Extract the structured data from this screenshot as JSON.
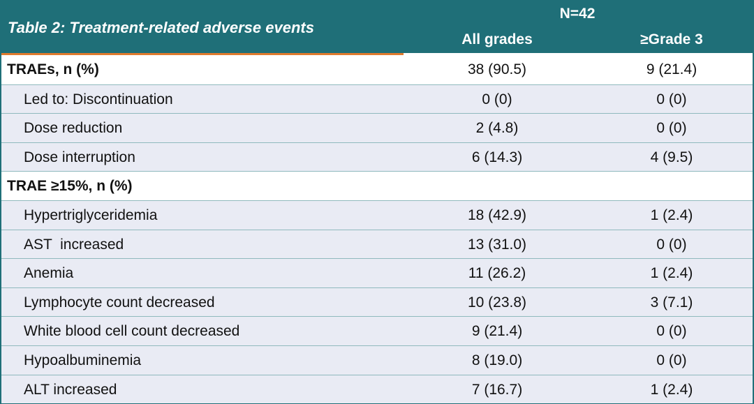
{
  "table": {
    "title": "Table 2: Treatment-related adverse events",
    "n_label": "N=42",
    "columns": [
      "All grades",
      "≥Grade 3"
    ],
    "rows": [
      {
        "label": "TRAEs, n (%)",
        "all": "38 (90.5)",
        "g3": "9 (21.4)",
        "section": true
      },
      {
        "label": "Led to: Discontinuation",
        "all": "0 (0)",
        "g3": "0 (0)"
      },
      {
        "label": "Dose reduction",
        "all": "2 (4.8)",
        "g3": "0 (0)"
      },
      {
        "label": "Dose interruption",
        "all": "6 (14.3)",
        "g3": "4 (9.5)"
      },
      {
        "label": "TRAE ≥15%, n (%)",
        "all": "",
        "g3": "",
        "section": true
      },
      {
        "label": "Hypertriglyceridemia",
        "all": "18 (42.9)",
        "g3": "1 (2.4)"
      },
      {
        "label": "AST  increased",
        "all": "13 (31.0)",
        "g3": "0 (0)"
      },
      {
        "label": "Anemia",
        "all": "11 (26.2)",
        "g3": "1 (2.4)"
      },
      {
        "label": "Lymphocyte count decreased",
        "all": "10 (23.8)",
        "g3": "3 (7.1)"
      },
      {
        "label": "White blood cell count decreased",
        "all": "9 (21.4)",
        "g3": "0 (0)"
      },
      {
        "label": "Hypoalbuminemia",
        "all": "8 (19.0)",
        "g3": "0 (0)"
      },
      {
        "label": "ALT increased",
        "all": "7 (16.7)",
        "g3": "1 (2.4)"
      }
    ]
  },
  "colors": {
    "header_bg": "#1f6f78",
    "accent": "#e07b2e",
    "row_shade": "#e9ebf4"
  }
}
